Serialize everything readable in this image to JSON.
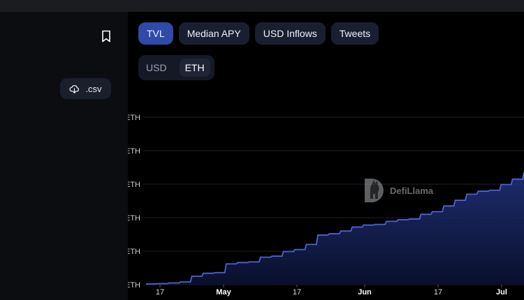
{
  "sidebar": {
    "csv_label": ".csv"
  },
  "tabs": [
    {
      "label": "TVL",
      "active": true
    },
    {
      "label": "Median APY",
      "active": false
    },
    {
      "label": "USD Inflows",
      "active": false
    },
    {
      "label": "Tweets",
      "active": false
    }
  ],
  "currency_toggle": {
    "options": [
      "USD",
      "ETH"
    ],
    "selected": "ETH"
  },
  "watermark": {
    "text": "DefiLlama"
  },
  "chart_data": {
    "type": "area",
    "title": "",
    "xlabel": "",
    "ylabel": "",
    "y_tick_labels": [
      "ETH",
      "ETH",
      "ETH",
      "ETH",
      "ETH",
      "ETH"
    ],
    "x_tick_labels": [
      "17",
      "May",
      "17",
      "Jun",
      "17",
      "Jul"
    ],
    "ylim": [
      0,
      5
    ],
    "line_color": "#4b63d8",
    "fill_color": "#1b2a6b",
    "grid": true,
    "series": [
      {
        "x": [
          "Apr 14",
          "Apr 18",
          "Apr 22",
          "Apr 24",
          "Apr 27",
          "Apr 29",
          "May 1",
          "May 3",
          "May 5",
          "May 7",
          "May 9",
          "May 12",
          "May 15",
          "May 18",
          "May 21",
          "May 23",
          "May 25",
          "May 27",
          "May 29",
          "May 31",
          "Jun 2",
          "Jun 5",
          "Jun 8",
          "Jun 11",
          "Jun 14",
          "Jun 17",
          "Jun 20",
          "Jun 23",
          "Jun 26",
          "Jun 29",
          "Jul 2",
          "Jul 5",
          "Jul 8",
          "Jul 10"
        ],
        "values": [
          0.02,
          0.03,
          0.05,
          0.08,
          0.25,
          0.34,
          0.36,
          0.62,
          0.66,
          0.68,
          0.82,
          0.85,
          0.99,
          1.05,
          1.2,
          1.48,
          1.52,
          1.6,
          1.72,
          1.78,
          1.8,
          1.89,
          1.94,
          1.96,
          2.1,
          2.18,
          2.35,
          2.52,
          2.7,
          2.79,
          2.82,
          2.99,
          3.15,
          3.35
        ]
      }
    ]
  }
}
